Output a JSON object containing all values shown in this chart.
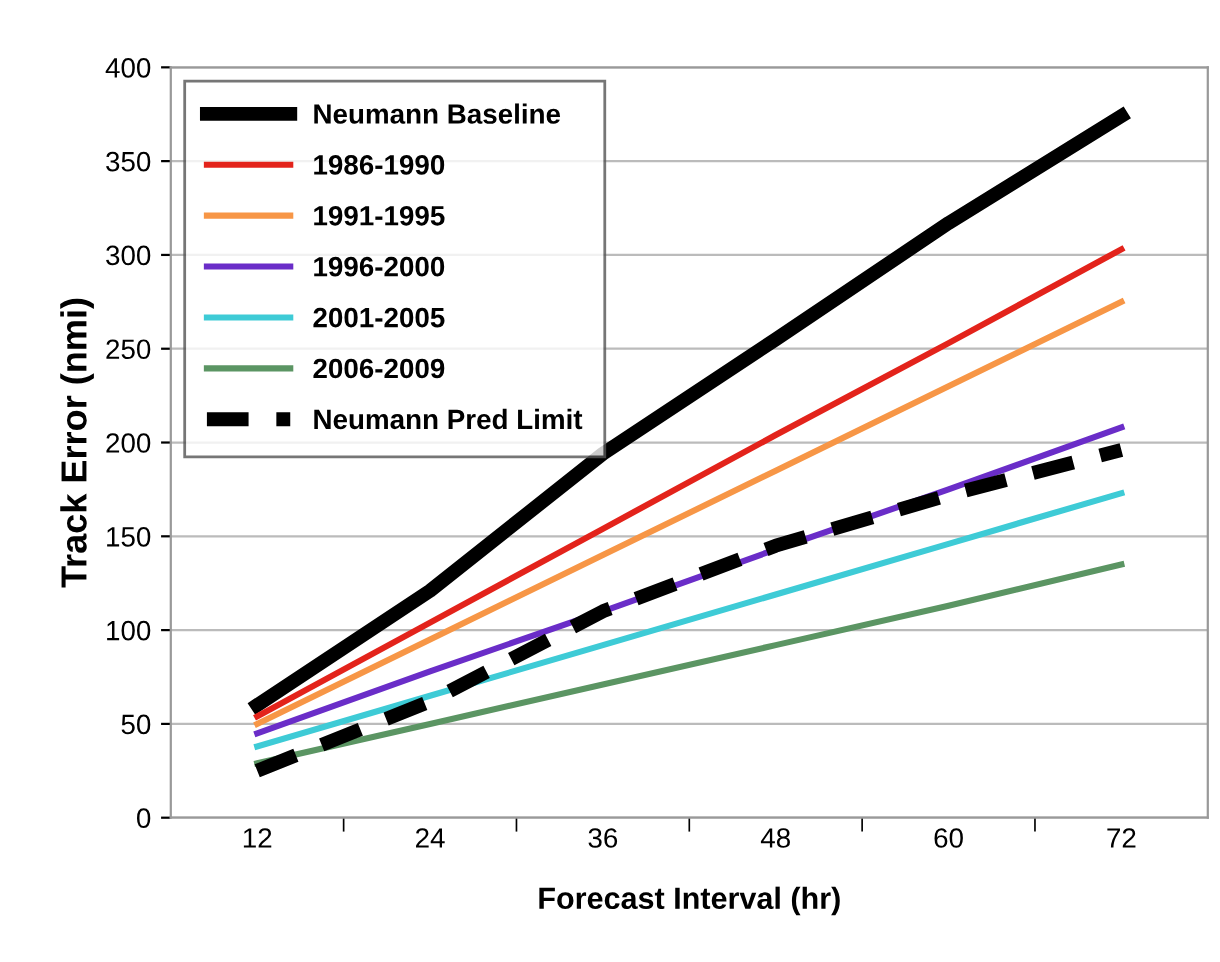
{
  "chart_data": {
    "type": "line",
    "xlabel": "Forecast Interval (hr)",
    "ylabel": "Track Error (nmi)",
    "categories": [
      "12",
      "24",
      "36",
      "48",
      "60",
      "72"
    ],
    "ylim": [
      0,
      400
    ],
    "yticks": [
      0,
      50,
      100,
      150,
      200,
      250,
      300,
      350,
      400
    ],
    "grid": "y",
    "legend": "top left",
    "marker": "none",
    "series": [
      {
        "name": "Neumann Baseline",
        "color": "#000000",
        "values": [
          60,
          121,
          194,
          255,
          317,
          374
        ]
      },
      {
        "name": "1986-1990",
        "color": "#e3231b",
        "values": [
          54,
          104,
          154,
          204,
          253,
          303
        ]
      },
      {
        "name": "1991-1995",
        "color": "#f79646",
        "values": [
          50,
          95,
          140,
          185,
          230,
          275
        ]
      },
      {
        "name": "1996-2000",
        "color": "#6a2dc8",
        "values": [
          45,
          78,
          110,
          143,
          175,
          208
        ]
      },
      {
        "name": "2001-2005",
        "color": "#3ecbd6",
        "values": [
          38,
          65,
          92,
          119,
          146,
          173
        ]
      },
      {
        "name": "2006-2009",
        "color": "#5b9563",
        "values": [
          29,
          50,
          71,
          92,
          113,
          135
        ]
      },
      {
        "name": "Neumann Pred Limit",
        "color": "#000000",
        "line_style": "dashed",
        "values": [
          25,
          62,
          110,
          145,
          172,
          196
        ]
      }
    ]
  }
}
